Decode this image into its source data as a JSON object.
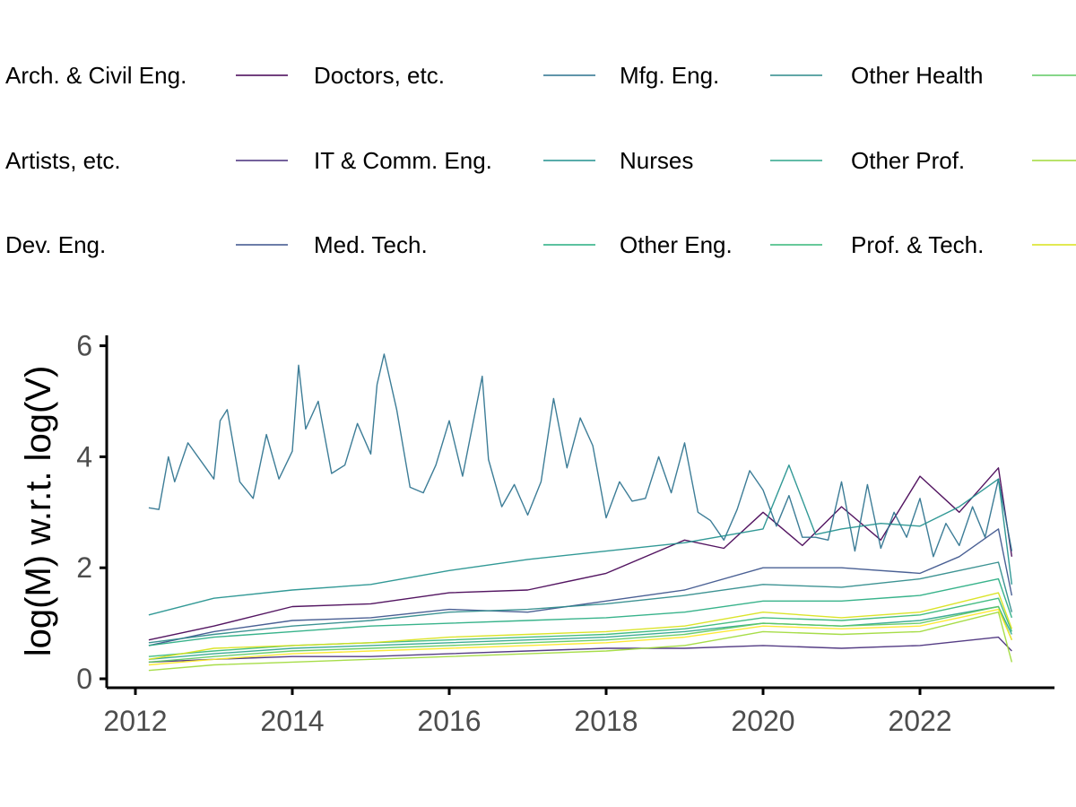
{
  "chart_data": {
    "type": "line",
    "xlabel": "",
    "ylabel": "log(M) w.r.t. log(V)",
    "xlim": [
      2011.7,
      2023.8
    ],
    "ylim": [
      -0.1,
      6.2
    ],
    "x_ticks": [
      2012,
      2014,
      2016,
      2018,
      2020,
      2022
    ],
    "y_ticks": [
      0,
      2,
      4,
      6
    ],
    "x_tick_labels": [
      "2012",
      "2014",
      "2016",
      "2018",
      "2020",
      "2022"
    ],
    "y_tick_labels": [
      "0",
      "2",
      "4",
      "6"
    ],
    "legend_position": "top",
    "grid": false,
    "series": [
      {
        "name": "Arch. & Civil Eng.",
        "color": "#440154",
        "points": [
          [
            2012.17,
            0.7
          ],
          [
            2013.0,
            0.95
          ],
          [
            2014.0,
            1.3
          ],
          [
            2015.0,
            1.35
          ],
          [
            2016.0,
            1.55
          ],
          [
            2017.0,
            1.6
          ],
          [
            2018.0,
            1.9
          ],
          [
            2019.0,
            2.5
          ],
          [
            2019.5,
            2.35
          ],
          [
            2020.0,
            3.0
          ],
          [
            2020.5,
            2.4
          ],
          [
            2021.0,
            3.1
          ],
          [
            2021.5,
            2.5
          ],
          [
            2022.0,
            3.65
          ],
          [
            2022.5,
            3.0
          ],
          [
            2023.0,
            3.8
          ],
          [
            2023.17,
            2.2
          ]
        ]
      },
      {
        "name": "Artists, etc.",
        "color": "#472d7b",
        "points": [
          [
            2012.17,
            0.3
          ],
          [
            2013.0,
            0.35
          ],
          [
            2014.0,
            0.4
          ],
          [
            2015.0,
            0.4
          ],
          [
            2016.0,
            0.45
          ],
          [
            2017.0,
            0.5
          ],
          [
            2018.0,
            0.55
          ],
          [
            2019.0,
            0.55
          ],
          [
            2020.0,
            0.6
          ],
          [
            2021.0,
            0.55
          ],
          [
            2022.0,
            0.6
          ],
          [
            2023.0,
            0.75
          ],
          [
            2023.17,
            0.5
          ]
        ]
      },
      {
        "name": "Dev. Eng.",
        "color": "#3b528b",
        "points": [
          [
            2012.17,
            0.6
          ],
          [
            2013.0,
            0.85
          ],
          [
            2014.0,
            1.05
          ],
          [
            2015.0,
            1.1
          ],
          [
            2016.0,
            1.25
          ],
          [
            2017.0,
            1.2
          ],
          [
            2018.0,
            1.4
          ],
          [
            2019.0,
            1.6
          ],
          [
            2020.0,
            2.0
          ],
          [
            2021.0,
            2.0
          ],
          [
            2022.0,
            1.9
          ],
          [
            2022.5,
            2.2
          ],
          [
            2023.0,
            2.7
          ],
          [
            2023.17,
            1.5
          ]
        ]
      },
      {
        "name": "Doctors, etc.",
        "color": "#2c728e",
        "points": [
          [
            2012.17,
            3.08
          ],
          [
            2012.3,
            3.05
          ],
          [
            2012.42,
            4.0
          ],
          [
            2012.5,
            3.55
          ],
          [
            2012.67,
            4.25
          ],
          [
            2013.0,
            3.6
          ],
          [
            2013.08,
            4.65
          ],
          [
            2013.17,
            4.85
          ],
          [
            2013.33,
            3.55
          ],
          [
            2013.5,
            3.25
          ],
          [
            2013.67,
            4.4
          ],
          [
            2013.83,
            3.6
          ],
          [
            2014.0,
            4.1
          ],
          [
            2014.08,
            5.65
          ],
          [
            2014.17,
            4.5
          ],
          [
            2014.33,
            5.0
          ],
          [
            2014.5,
            3.7
          ],
          [
            2014.67,
            3.85
          ],
          [
            2014.83,
            4.6
          ],
          [
            2015.0,
            4.05
          ],
          [
            2015.08,
            5.3
          ],
          [
            2015.17,
            5.85
          ],
          [
            2015.33,
            4.85
          ],
          [
            2015.5,
            3.45
          ],
          [
            2015.67,
            3.35
          ],
          [
            2015.83,
            3.85
          ],
          [
            2016.0,
            4.65
          ],
          [
            2016.17,
            3.65
          ],
          [
            2016.33,
            4.8
          ],
          [
            2016.42,
            5.45
          ],
          [
            2016.5,
            3.95
          ],
          [
            2016.67,
            3.1
          ],
          [
            2016.83,
            3.5
          ],
          [
            2017.0,
            2.95
          ],
          [
            2017.17,
            3.55
          ],
          [
            2017.33,
            5.05
          ],
          [
            2017.5,
            3.8
          ],
          [
            2017.67,
            4.7
          ],
          [
            2017.83,
            4.2
          ],
          [
            2018.0,
            2.9
          ],
          [
            2018.17,
            3.55
          ],
          [
            2018.33,
            3.2
          ],
          [
            2018.5,
            3.25
          ],
          [
            2018.67,
            4.0
          ],
          [
            2018.83,
            3.35
          ],
          [
            2019.0,
            4.25
          ],
          [
            2019.17,
            3.0
          ],
          [
            2019.33,
            2.85
          ],
          [
            2019.5,
            2.5
          ],
          [
            2019.67,
            3.05
          ],
          [
            2019.83,
            3.75
          ],
          [
            2020.0,
            3.4
          ],
          [
            2020.17,
            2.75
          ],
          [
            2020.33,
            3.3
          ],
          [
            2020.5,
            2.55
          ],
          [
            2020.67,
            2.55
          ],
          [
            2020.83,
            2.5
          ],
          [
            2021.0,
            3.55
          ],
          [
            2021.17,
            2.3
          ],
          [
            2021.33,
            3.5
          ],
          [
            2021.5,
            2.35
          ],
          [
            2021.67,
            3.0
          ],
          [
            2021.83,
            2.55
          ],
          [
            2022.0,
            3.25
          ],
          [
            2022.17,
            2.2
          ],
          [
            2022.33,
            2.8
          ],
          [
            2022.5,
            2.4
          ],
          [
            2022.67,
            3.1
          ],
          [
            2022.83,
            2.55
          ],
          [
            2023.0,
            3.6
          ],
          [
            2023.17,
            2.3
          ]
        ]
      },
      {
        "name": "IT & Comm. Eng.",
        "color": "#21908d",
        "points": [
          [
            2012.17,
            1.15
          ],
          [
            2013.0,
            1.45
          ],
          [
            2014.0,
            1.6
          ],
          [
            2015.0,
            1.7
          ],
          [
            2016.0,
            1.95
          ],
          [
            2017.0,
            2.15
          ],
          [
            2018.0,
            2.3
          ],
          [
            2019.0,
            2.45
          ],
          [
            2020.0,
            2.7
          ],
          [
            2020.33,
            3.85
          ],
          [
            2020.67,
            2.6
          ],
          [
            2021.0,
            2.7
          ],
          [
            2021.5,
            2.8
          ],
          [
            2022.0,
            2.75
          ],
          [
            2022.5,
            3.1
          ],
          [
            2023.0,
            3.6
          ],
          [
            2023.17,
            1.7
          ]
        ]
      },
      {
        "name": "Med. Tech.",
        "color": "#27ad81",
        "points": [
          [
            2012.17,
            0.6
          ],
          [
            2013.0,
            0.75
          ],
          [
            2014.0,
            0.85
          ],
          [
            2015.0,
            0.95
          ],
          [
            2016.0,
            1.0
          ],
          [
            2017.0,
            1.05
          ],
          [
            2018.0,
            1.1
          ],
          [
            2019.0,
            1.2
          ],
          [
            2020.0,
            1.4
          ],
          [
            2021.0,
            1.4
          ],
          [
            2022.0,
            1.5
          ],
          [
            2023.0,
            1.8
          ],
          [
            2023.17,
            1.1
          ]
        ]
      },
      {
        "name": "Mfg. Eng.",
        "color": "#2d8a8a",
        "points": [
          [
            2012.17,
            0.65
          ],
          [
            2013.0,
            0.8
          ],
          [
            2014.0,
            0.95
          ],
          [
            2015.0,
            1.05
          ],
          [
            2016.0,
            1.2
          ],
          [
            2017.0,
            1.25
          ],
          [
            2018.0,
            1.35
          ],
          [
            2019.0,
            1.5
          ],
          [
            2020.0,
            1.7
          ],
          [
            2021.0,
            1.65
          ],
          [
            2022.0,
            1.8
          ],
          [
            2023.0,
            2.1
          ],
          [
            2023.17,
            1.2
          ]
        ]
      },
      {
        "name": "Nurses",
        "color": "#2fa58c",
        "points": [
          [
            2012.17,
            0.35
          ],
          [
            2013.0,
            0.45
          ],
          [
            2014.0,
            0.55
          ],
          [
            2015.0,
            0.6
          ],
          [
            2016.0,
            0.65
          ],
          [
            2017.0,
            0.7
          ],
          [
            2018.0,
            0.75
          ],
          [
            2019.0,
            0.85
          ],
          [
            2020.0,
            1.0
          ],
          [
            2021.0,
            0.95
          ],
          [
            2022.0,
            1.05
          ],
          [
            2023.0,
            1.3
          ],
          [
            2023.17,
            0.8
          ]
        ]
      },
      {
        "name": "Other Eng.",
        "color": "#35b779",
        "points": [
          [
            2012.17,
            0.4
          ],
          [
            2013.0,
            0.5
          ],
          [
            2014.0,
            0.6
          ],
          [
            2015.0,
            0.65
          ],
          [
            2016.0,
            0.7
          ],
          [
            2017.0,
            0.75
          ],
          [
            2018.0,
            0.8
          ],
          [
            2019.0,
            0.9
          ],
          [
            2020.0,
            1.1
          ],
          [
            2021.0,
            1.05
          ],
          [
            2022.0,
            1.15
          ],
          [
            2023.0,
            1.45
          ],
          [
            2023.17,
            0.85
          ]
        ]
      },
      {
        "name": "Other Health",
        "color": "#5ec962",
        "points": [
          [
            2012.17,
            0.3
          ],
          [
            2013.0,
            0.4
          ],
          [
            2014.0,
            0.5
          ],
          [
            2015.0,
            0.55
          ],
          [
            2016.0,
            0.6
          ],
          [
            2017.0,
            0.65
          ],
          [
            2018.0,
            0.7
          ],
          [
            2019.0,
            0.8
          ],
          [
            2020.0,
            1.0
          ],
          [
            2021.0,
            0.95
          ],
          [
            2022.0,
            1.0
          ],
          [
            2023.0,
            1.3
          ],
          [
            2023.17,
            0.7
          ]
        ]
      },
      {
        "name": "Other Prof.",
        "color": "#a0da39",
        "points": [
          [
            2012.17,
            0.15
          ],
          [
            2013.0,
            0.25
          ],
          [
            2014.0,
            0.3
          ],
          [
            2015.0,
            0.35
          ],
          [
            2016.0,
            0.4
          ],
          [
            2017.0,
            0.45
          ],
          [
            2018.0,
            0.5
          ],
          [
            2019.0,
            0.6
          ],
          [
            2020.0,
            0.85
          ],
          [
            2021.0,
            0.8
          ],
          [
            2022.0,
            0.85
          ],
          [
            2023.0,
            1.2
          ],
          [
            2023.17,
            0.3
          ]
        ]
      },
      {
        "name": "Prof. & Tech.",
        "color": "#d8e219",
        "points": [
          [
            2012.17,
            0.35
          ],
          [
            2013.0,
            0.55
          ],
          [
            2014.0,
            0.6
          ],
          [
            2015.0,
            0.65
          ],
          [
            2016.0,
            0.75
          ],
          [
            2017.0,
            0.8
          ],
          [
            2018.0,
            0.85
          ],
          [
            2019.0,
            0.95
          ],
          [
            2020.0,
            1.2
          ],
          [
            2021.0,
            1.1
          ],
          [
            2022.0,
            1.2
          ],
          [
            2023.0,
            1.55
          ],
          [
            2023.17,
            0.9
          ]
        ]
      },
      {
        "name": "",
        "color": "#fde725",
        "points": [
          [
            2012.17,
            0.25
          ],
          [
            2013.0,
            0.35
          ],
          [
            2014.0,
            0.45
          ],
          [
            2015.0,
            0.5
          ],
          [
            2016.0,
            0.55
          ],
          [
            2017.0,
            0.6
          ],
          [
            2018.0,
            0.65
          ],
          [
            2019.0,
            0.75
          ],
          [
            2020.0,
            0.95
          ],
          [
            2021.0,
            0.9
          ],
          [
            2022.0,
            0.95
          ],
          [
            2023.0,
            1.25
          ],
          [
            2023.17,
            0.7
          ]
        ]
      }
    ]
  }
}
